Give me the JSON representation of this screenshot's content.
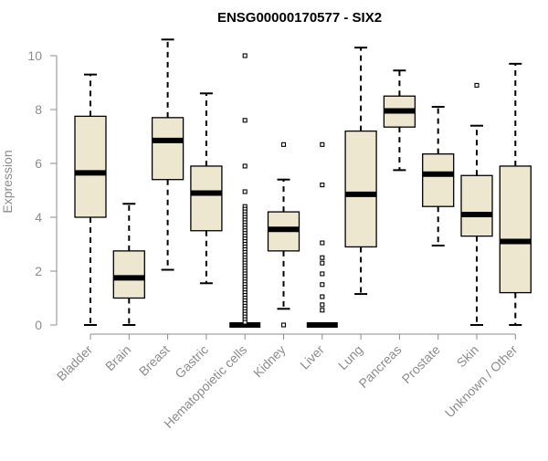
{
  "chart_data": {
    "type": "box",
    "title": "ENSG00000170577 - SIX2",
    "ylabel": "Expression",
    "xlabel": "",
    "ylim": [
      0,
      10.5
    ],
    "yticks": [
      0,
      2,
      4,
      6,
      8,
      10
    ],
    "box_fill": "#ede7d0",
    "categories": [
      "Bladder",
      "Brain",
      "Breast",
      "Gastric",
      "Hematopoietic cells",
      "Kidney",
      "Liver",
      "Lung",
      "Pancreas",
      "Prostate",
      "Skin",
      "Unknown / Other"
    ],
    "boxes": [
      {
        "category": "Bladder",
        "whisker_low": 0,
        "q1": 4.0,
        "median": 5.65,
        "q3": 7.75,
        "whisker_high": 9.3,
        "outliers": []
      },
      {
        "category": "Brain",
        "whisker_low": 0,
        "q1": 1.0,
        "median": 1.75,
        "q3": 2.75,
        "whisker_high": 4.5,
        "outliers": []
      },
      {
        "category": "Breast",
        "whisker_low": 2.05,
        "q1": 5.4,
        "median": 6.85,
        "q3": 7.7,
        "whisker_high": 10.6,
        "outliers": []
      },
      {
        "category": "Gastric",
        "whisker_low": 1.55,
        "q1": 3.5,
        "median": 4.9,
        "q3": 5.9,
        "whisker_high": 8.6,
        "outliers": []
      },
      {
        "category": "Hematopoietic cells",
        "whisker_low": 0,
        "q1": 0,
        "median": 0,
        "q3": 0,
        "whisker_high": 0,
        "outliers": [
          10.0,
          7.6,
          5.9,
          4.95,
          4.4,
          4.3,
          4.2,
          4.1,
          4.0,
          3.9,
          3.8,
          3.7,
          3.6,
          3.5,
          3.4,
          3.3,
          3.2,
          3.1,
          3.0,
          2.9,
          2.8,
          2.7,
          2.6,
          2.5,
          2.4,
          2.3,
          2.2,
          2.1,
          2.0,
          1.9,
          1.8,
          1.7,
          1.6,
          1.5,
          1.4,
          1.3,
          1.2,
          1.1,
          1.0,
          0.9,
          0.8,
          0.7,
          0.6,
          0.5,
          0.4,
          0.3,
          0.2,
          0.1
        ]
      },
      {
        "category": "Kidney",
        "whisker_low": 0.6,
        "q1": 2.75,
        "median": 3.55,
        "q3": 4.2,
        "whisker_high": 5.4,
        "outliers": [
          6.7,
          0
        ]
      },
      {
        "category": "Liver",
        "whisker_low": 0,
        "q1": 0,
        "median": 0,
        "q3": 0,
        "whisker_high": 0,
        "outliers": [
          6.7,
          5.2,
          3.05,
          2.5,
          2.3,
          1.9,
          1.5,
          1.05,
          0.75,
          0.55
        ]
      },
      {
        "category": "Lung",
        "whisker_low": 1.15,
        "q1": 2.9,
        "median": 4.85,
        "q3": 7.2,
        "whisker_high": 10.3,
        "outliers": []
      },
      {
        "category": "Pancreas",
        "whisker_low": 5.75,
        "q1": 7.35,
        "median": 7.95,
        "q3": 8.5,
        "whisker_high": 9.45,
        "outliers": []
      },
      {
        "category": "Prostate",
        "whisker_low": 2.95,
        "q1": 4.4,
        "median": 5.6,
        "q3": 6.35,
        "whisker_high": 8.1,
        "outliers": []
      },
      {
        "category": "Skin",
        "whisker_low": 0,
        "q1": 3.3,
        "median": 4.1,
        "q3": 5.55,
        "whisker_high": 7.4,
        "outliers": [
          8.9
        ]
      },
      {
        "category": "Unknown / Other",
        "whisker_low": 0,
        "q1": 1.2,
        "median": 3.1,
        "q3": 5.9,
        "whisker_high": 9.7,
        "outliers": []
      }
    ]
  }
}
